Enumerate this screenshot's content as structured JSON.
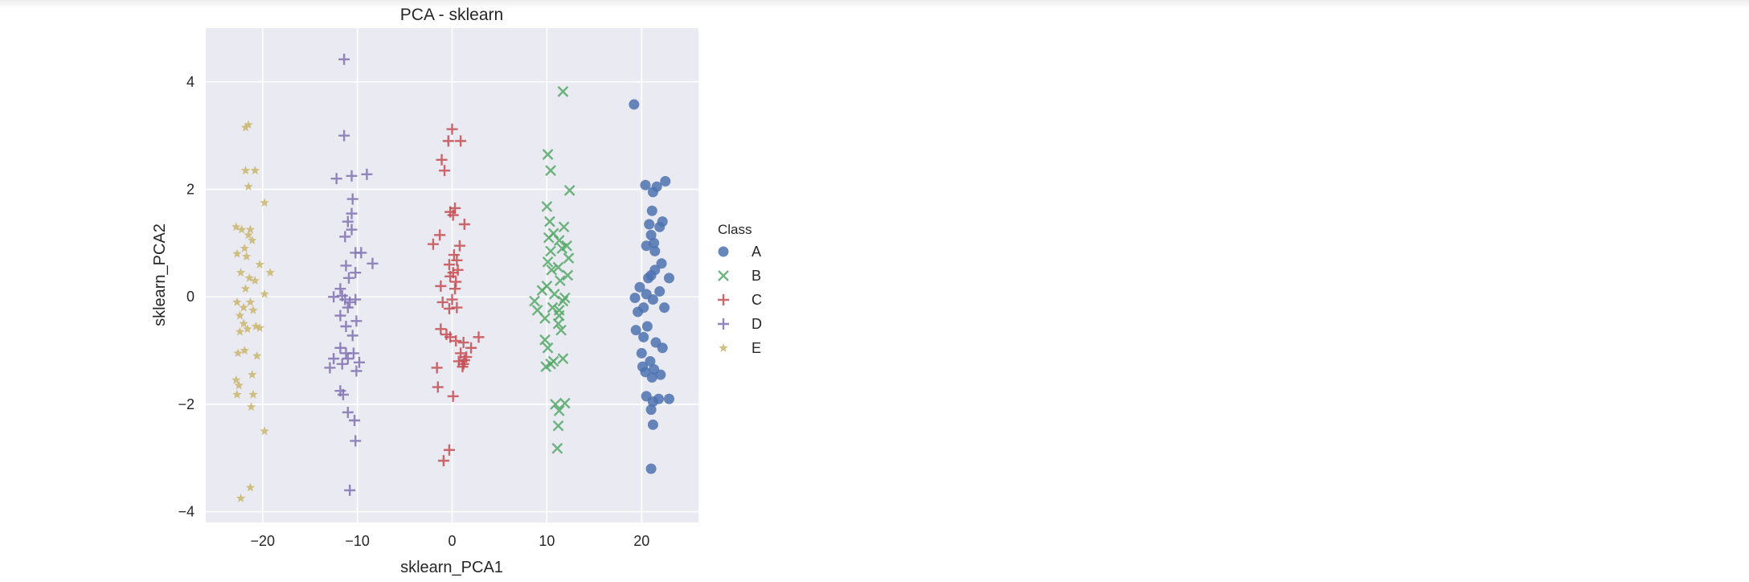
{
  "chart_data": {
    "type": "scatter",
    "title": "PCA - sklearn",
    "xlabel": "sklearn_PCA1",
    "ylabel": "sklearn_PCA2",
    "xlim": [
      -26,
      26
    ],
    "ylim": [
      -4.2,
      5.0
    ],
    "xticks": [
      -20,
      -10,
      0,
      10,
      20
    ],
    "yticks": [
      -4,
      -2,
      0,
      2,
      4
    ],
    "grid": true,
    "legend": {
      "title": "Class",
      "placement": "right-outside"
    },
    "colors": {
      "A": "#4c72b0",
      "B": "#55a868",
      "C": "#c44e52",
      "D": "#8172b2",
      "E": "#ccb974",
      "background": "#eaeaf2"
    },
    "series": [
      {
        "name": "A",
        "marker": "circle",
        "points": [
          [
            19.2,
            3.58
          ],
          [
            20.4,
            2.08
          ],
          [
            21.6,
            2.05
          ],
          [
            22.5,
            2.15
          ],
          [
            21.2,
            1.95
          ],
          [
            21.1,
            1.6
          ],
          [
            20.8,
            1.35
          ],
          [
            22.2,
            1.4
          ],
          [
            21.9,
            1.3
          ],
          [
            21.0,
            1.15
          ],
          [
            20.5,
            0.95
          ],
          [
            21.4,
            0.85
          ],
          [
            22.1,
            0.62
          ],
          [
            21.4,
            0.5
          ],
          [
            21.0,
            0.4
          ],
          [
            20.7,
            0.35
          ],
          [
            19.8,
            0.18
          ],
          [
            22.9,
            0.35
          ],
          [
            21.9,
            0.1
          ],
          [
            20.5,
            0.05
          ],
          [
            21.2,
            -0.05
          ],
          [
            19.3,
            -0.02
          ],
          [
            22.4,
            -0.2
          ],
          [
            20.2,
            -0.2
          ],
          [
            19.6,
            -0.28
          ],
          [
            19.4,
            -0.62
          ],
          [
            20.2,
            -0.75
          ],
          [
            21.5,
            -0.85
          ],
          [
            22.2,
            -0.95
          ],
          [
            20.0,
            -1.05
          ],
          [
            20.9,
            -1.2
          ],
          [
            20.1,
            -1.3
          ],
          [
            21.3,
            -1.35
          ],
          [
            22.0,
            -1.45
          ],
          [
            21.1,
            -1.5
          ],
          [
            20.4,
            -1.4
          ],
          [
            20.5,
            -1.85
          ],
          [
            21.2,
            -1.95
          ],
          [
            21.8,
            -1.9
          ],
          [
            22.9,
            -1.9
          ],
          [
            21.0,
            -2.1
          ],
          [
            21.2,
            -2.38
          ],
          [
            21.0,
            -3.2
          ],
          [
            21.3,
            1.0
          ],
          [
            20.6,
            -0.55
          ]
        ]
      },
      {
        "name": "B",
        "marker": "x",
        "points": [
          [
            11.7,
            3.82
          ],
          [
            10.1,
            2.65
          ],
          [
            10.4,
            2.35
          ],
          [
            12.4,
            1.98
          ],
          [
            10.0,
            1.68
          ],
          [
            10.3,
            1.4
          ],
          [
            11.8,
            1.3
          ],
          [
            10.2,
            1.1
          ],
          [
            10.7,
            1.18
          ],
          [
            11.3,
            1.05
          ],
          [
            12.1,
            0.95
          ],
          [
            11.6,
            0.9
          ],
          [
            10.4,
            0.85
          ],
          [
            12.3,
            0.72
          ],
          [
            10.1,
            0.65
          ],
          [
            11.2,
            0.55
          ],
          [
            10.5,
            0.5
          ],
          [
            12.2,
            0.4
          ],
          [
            11.4,
            0.3
          ],
          [
            10.0,
            0.2
          ],
          [
            9.5,
            0.12
          ],
          [
            11.9,
            -0.02
          ],
          [
            11.7,
            -0.08
          ],
          [
            8.7,
            -0.08
          ],
          [
            9.0,
            -0.25
          ],
          [
            10.6,
            -0.2
          ],
          [
            11.3,
            -0.25
          ],
          [
            9.8,
            -0.4
          ],
          [
            11.2,
            -0.5
          ],
          [
            11.5,
            -0.62
          ],
          [
            9.8,
            -0.8
          ],
          [
            10.1,
            -0.95
          ],
          [
            11.7,
            -1.15
          ],
          [
            10.7,
            -1.2
          ],
          [
            9.9,
            -1.3
          ],
          [
            10.4,
            -1.25
          ],
          [
            10.9,
            -2.0
          ],
          [
            11.9,
            -1.98
          ],
          [
            11.3,
            -2.12
          ],
          [
            11.2,
            -2.4
          ],
          [
            11.1,
            -2.82
          ],
          [
            11.3,
            -0.35
          ],
          [
            10.8,
            0.05
          ]
        ]
      },
      {
        "name": "C",
        "marker": "plus",
        "points": [
          [
            0.0,
            3.12
          ],
          [
            -0.4,
            2.9
          ],
          [
            0.9,
            2.9
          ],
          [
            -1.1,
            2.55
          ],
          [
            -0.8,
            2.35
          ],
          [
            0.3,
            1.65
          ],
          [
            -0.2,
            1.58
          ],
          [
            0.1,
            1.52
          ],
          [
            1.3,
            1.35
          ],
          [
            -1.3,
            1.15
          ],
          [
            -2.0,
            0.98
          ],
          [
            0.8,
            0.95
          ],
          [
            0.2,
            0.78
          ],
          [
            0.5,
            0.68
          ],
          [
            -0.3,
            0.6
          ],
          [
            0.6,
            0.5
          ],
          [
            0.1,
            0.45
          ],
          [
            -0.2,
            0.38
          ],
          [
            0.4,
            0.28
          ],
          [
            -1.2,
            0.2
          ],
          [
            0.3,
            0.15
          ],
          [
            0.0,
            -0.05
          ],
          [
            -1.0,
            -0.1
          ],
          [
            0.5,
            -0.2
          ],
          [
            -0.3,
            -0.22
          ],
          [
            -1.2,
            -0.6
          ],
          [
            -0.6,
            -0.7
          ],
          [
            -0.2,
            -0.75
          ],
          [
            2.8,
            -0.75
          ],
          [
            0.4,
            -0.82
          ],
          [
            1.2,
            -0.85
          ],
          [
            2.0,
            -0.95
          ],
          [
            0.9,
            -1.05
          ],
          [
            1.5,
            -1.12
          ],
          [
            1.3,
            -1.18
          ],
          [
            1.2,
            -1.25
          ],
          [
            0.7,
            -1.2
          ],
          [
            1.1,
            -1.3
          ],
          [
            -1.6,
            -1.32
          ],
          [
            -1.5,
            -1.68
          ],
          [
            0.1,
            -1.85
          ],
          [
            -0.3,
            -2.85
          ],
          [
            -0.9,
            -3.05
          ]
        ]
      },
      {
        "name": "D",
        "marker": "plus",
        "points": [
          [
            -11.4,
            4.42
          ],
          [
            -11.4,
            3.0
          ],
          [
            -12.2,
            2.2
          ],
          [
            -10.6,
            2.25
          ],
          [
            -9.0,
            2.28
          ],
          [
            -10.5,
            1.82
          ],
          [
            -10.6,
            1.55
          ],
          [
            -11.0,
            1.4
          ],
          [
            -11.3,
            1.12
          ],
          [
            -10.2,
            0.82
          ],
          [
            -9.6,
            0.82
          ],
          [
            -8.4,
            0.62
          ],
          [
            -11.2,
            0.58
          ],
          [
            -10.2,
            0.45
          ],
          [
            -10.9,
            0.35
          ],
          [
            -11.8,
            0.15
          ],
          [
            -11.6,
            0.02
          ],
          [
            -12.5,
            0.0
          ],
          [
            -11.3,
            -0.05
          ],
          [
            -10.2,
            -0.05
          ],
          [
            -11.0,
            -0.2
          ],
          [
            -11.8,
            -0.35
          ],
          [
            -10.1,
            -0.45
          ],
          [
            -11.2,
            -0.55
          ],
          [
            -10.5,
            -0.72
          ],
          [
            -11.8,
            -0.95
          ],
          [
            -11.2,
            -1.05
          ],
          [
            -10.4,
            -1.05
          ],
          [
            -12.5,
            -1.15
          ],
          [
            -11.0,
            -1.15
          ],
          [
            -9.8,
            -1.22
          ],
          [
            -12.9,
            -1.32
          ],
          [
            -11.6,
            -1.25
          ],
          [
            -10.1,
            -1.38
          ],
          [
            -11.8,
            -1.75
          ],
          [
            -11.5,
            -1.82
          ],
          [
            -11.0,
            -2.15
          ],
          [
            -10.3,
            -2.3
          ],
          [
            -10.2,
            -2.68
          ],
          [
            -10.8,
            -3.6
          ],
          [
            -10.8,
            -0.1
          ],
          [
            -10.6,
            1.25
          ]
        ]
      },
      {
        "name": "E",
        "marker": "star",
        "points": [
          [
            -21.5,
            3.2
          ],
          [
            -21.8,
            3.15
          ],
          [
            -21.8,
            2.35
          ],
          [
            -20.8,
            2.35
          ],
          [
            -21.5,
            2.05
          ],
          [
            -19.8,
            1.75
          ],
          [
            -22.8,
            1.3
          ],
          [
            -22.2,
            1.25
          ],
          [
            -21.3,
            1.25
          ],
          [
            -21.5,
            1.15
          ],
          [
            -21.1,
            1.05
          ],
          [
            -21.9,
            0.9
          ],
          [
            -22.7,
            0.8
          ],
          [
            -21.7,
            0.75
          ],
          [
            -20.3,
            0.6
          ],
          [
            -19.2,
            0.45
          ],
          [
            -22.3,
            0.45
          ],
          [
            -21.4,
            0.35
          ],
          [
            -20.8,
            0.3
          ],
          [
            -21.8,
            0.15
          ],
          [
            -19.8,
            0.05
          ],
          [
            -22.7,
            -0.1
          ],
          [
            -21.3,
            -0.1
          ],
          [
            -22.0,
            -0.2
          ],
          [
            -21.0,
            -0.25
          ],
          [
            -22.4,
            -0.35
          ],
          [
            -22.0,
            -0.5
          ],
          [
            -20.7,
            -0.55
          ],
          [
            -21.6,
            -0.6
          ],
          [
            -20.3,
            -0.58
          ],
          [
            -22.4,
            -0.65
          ],
          [
            -21.9,
            -1.0
          ],
          [
            -22.6,
            -1.05
          ],
          [
            -20.6,
            -1.1
          ],
          [
            -21.1,
            -1.45
          ],
          [
            -22.8,
            -1.55
          ],
          [
            -22.5,
            -1.65
          ],
          [
            -22.7,
            -1.82
          ],
          [
            -21.0,
            -1.82
          ],
          [
            -21.2,
            -2.05
          ],
          [
            -19.8,
            -2.5
          ],
          [
            -21.3,
            -3.55
          ],
          [
            -22.3,
            -3.75
          ]
        ]
      }
    ]
  }
}
